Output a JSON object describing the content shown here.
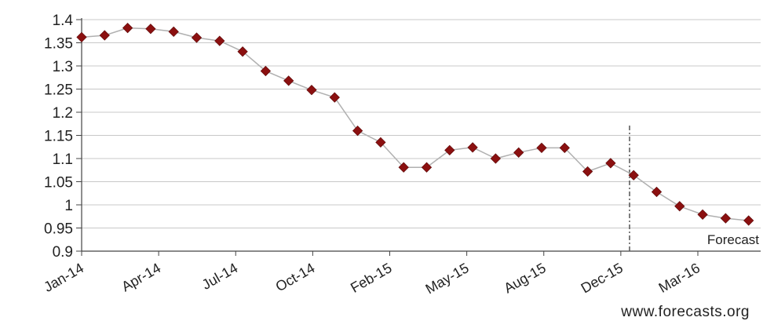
{
  "chart_data": {
    "type": "line",
    "title": "",
    "xlabel": "",
    "ylabel": "",
    "ylim": [
      0.9,
      1.4
    ],
    "yticks": [
      "0.9",
      "0.95",
      "1",
      "1.05",
      "1.1",
      "1.15",
      "1.2",
      "1.25",
      "1.3",
      "1.35",
      "1.4"
    ],
    "xticks": [
      "Jan-14",
      "Apr-14",
      "Jul-14",
      "Oct-14",
      "Feb-15",
      "May-15",
      "Aug-15",
      "Dec-15",
      "Mar-16"
    ],
    "grid": true,
    "legend": "none",
    "forecast_label": "Forecast",
    "source": "www.forecasts.org",
    "colors": {
      "marker": "#8b1010",
      "line": "#b0b0b0",
      "grid": "#c8c8c8",
      "divider": "#555555"
    },
    "series": [
      {
        "values": [
          1.362,
          1.366,
          1.382,
          1.38,
          1.374,
          1.361,
          1.354,
          1.331,
          1.289,
          1.268,
          1.248,
          1.232,
          1.16,
          1.135,
          1.081,
          1.081,
          1.118,
          1.124,
          1.1,
          1.113,
          1.123,
          1.123,
          1.072,
          1.09,
          1.064,
          1.028,
          0.997,
          0.979,
          0.971,
          0.966
        ]
      }
    ]
  }
}
